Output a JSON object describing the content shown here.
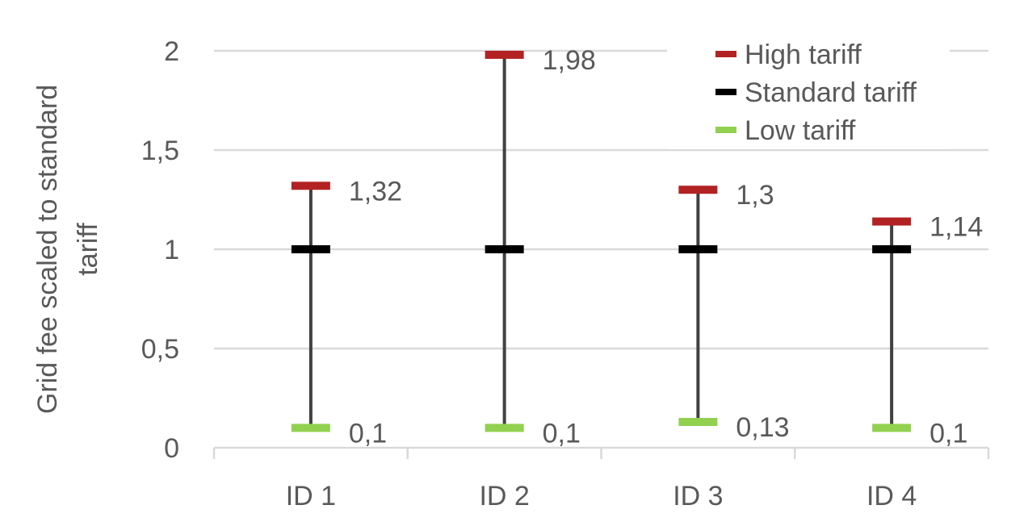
{
  "chart_data": {
    "type": "line",
    "subtype": "high-low",
    "title": "",
    "xlabel": "",
    "ylabel_lines": [
      "Grid fee scaled to standard",
      "tariff"
    ],
    "categories": [
      "ID 1",
      "ID 2",
      "ID 3",
      "ID 4"
    ],
    "ylim": [
      0,
      2
    ],
    "yticks": [
      0,
      0.5,
      1,
      1.5,
      2
    ],
    "ytick_labels": [
      "0",
      "0,5",
      "1",
      "1,5",
      "2"
    ],
    "grid": true,
    "legend_position": "top-right",
    "series": [
      {
        "name": "High tariff",
        "color": "#b22222",
        "values": [
          1.32,
          1.98,
          1.3,
          1.14
        ],
        "labels": [
          "1,32",
          "1,98",
          "1,3",
          "1,14"
        ]
      },
      {
        "name": "Standard tariff",
        "color": "#000000",
        "values": [
          1,
          1,
          1,
          1
        ]
      },
      {
        "name": "Low tariff",
        "color": "#92d050",
        "values": [
          0.1,
          0.1,
          0.13,
          0.1
        ],
        "labels": [
          "0,1",
          "0,1",
          "0,13",
          "0,1"
        ]
      }
    ],
    "range_line_color": "#404040"
  }
}
